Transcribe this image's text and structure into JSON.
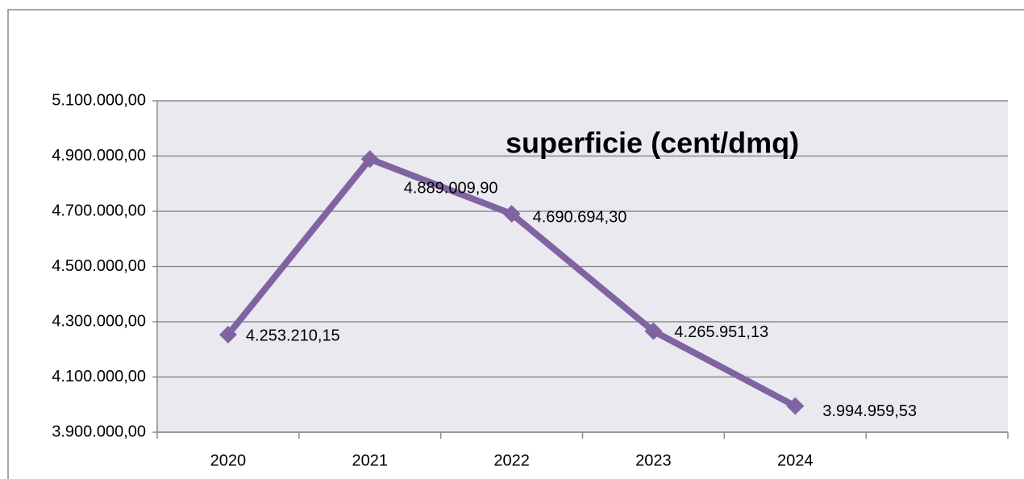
{
  "chart_data": {
    "type": "line",
    "title": "superficie (cent/dmq)",
    "categories": [
      "2020",
      "2021",
      "2022",
      "2023",
      "2024",
      null
    ],
    "series": [
      {
        "name": "superficie (cent/dmq)",
        "color": "#8064a2",
        "values": [
          4253210.15,
          4889009.9,
          4690694.3,
          4265951.13,
          3994959.53,
          null
        ],
        "value_labels": [
          "4.253.210,15",
          "4.889.009,90",
          "4.690.694,30",
          "4.265.951,13",
          "3.994.959,53",
          null
        ]
      }
    ],
    "ylim": [
      3900000,
      5100000
    ],
    "yticks": [
      {
        "value": 3900000,
        "label": "3.900.000,00"
      },
      {
        "value": 4100000,
        "label": "4.100.000,00"
      },
      {
        "value": 4300000,
        "label": "4.300.000,00"
      },
      {
        "value": 4500000,
        "label": "4.500.000,00"
      },
      {
        "value": 4700000,
        "label": "4.700.000,00"
      },
      {
        "value": 4900000,
        "label": "4.900.000,00"
      },
      {
        "value": 5100000,
        "label": "5.100.000,00"
      }
    ],
    "grid": true,
    "plot_background": "#ebe9f0"
  }
}
